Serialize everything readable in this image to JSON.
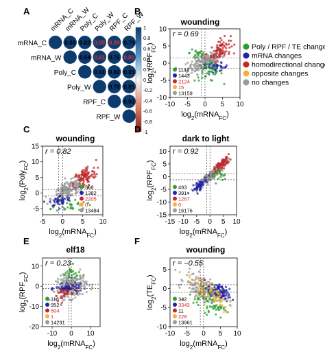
{
  "colors": {
    "green": "#2ca02c",
    "blue": "#2222aa",
    "red": "#c0282a",
    "orange": "#f5b041",
    "gray": "#9a9a9a",
    "navy": "#0d3b6e"
  },
  "panelA": {
    "label": "A",
    "columns": [
      "mRNA_C",
      "mRNA_W",
      "Poly_C",
      "Poly_W",
      "RPF_C",
      "RPF_W"
    ],
    "rows": [
      "mRNA_C",
      "mRNA_W",
      "Poly_C",
      "Poly_W",
      "RPF_C",
      "RPF_W"
    ],
    "cells": [
      {
        "r": 0,
        "c": 0,
        "v": "",
        "kind": "diag"
      },
      {
        "r": 0,
        "c": 1,
        "v": "0.88",
        "kind": "black"
      },
      {
        "r": 0,
        "c": 2,
        "v": "0.82",
        "kind": "black"
      },
      {
        "r": 0,
        "c": 3,
        "v": "0.69",
        "kind": "red"
      },
      {
        "r": 0,
        "c": 4,
        "v": "0.89",
        "kind": "red"
      },
      {
        "r": 0,
        "c": 5,
        "v": "0.79",
        "kind": "black"
      },
      {
        "r": 1,
        "c": 1,
        "v": "",
        "kind": "diag"
      },
      {
        "r": 1,
        "c": 2,
        "v": "0.84",
        "kind": "black"
      },
      {
        "r": 1,
        "c": 3,
        "v": "0.81",
        "kind": "red"
      },
      {
        "r": 1,
        "c": 4,
        "v": "0.76",
        "kind": "black"
      },
      {
        "r": 1,
        "c": 5,
        "v": "0.80",
        "kind": "red"
      },
      {
        "r": 2,
        "c": 2,
        "v": "",
        "kind": "diag"
      },
      {
        "r": 2,
        "c": 3,
        "v": "0.91",
        "kind": "black"
      },
      {
        "r": 2,
        "c": 4,
        "v": "0.82",
        "kind": "black"
      },
      {
        "r": 2,
        "c": 5,
        "v": "0.83",
        "kind": "black"
      },
      {
        "r": 3,
        "c": 3,
        "v": "",
        "kind": "diag"
      },
      {
        "r": 3,
        "c": 4,
        "v": "0.78",
        "kind": "black"
      },
      {
        "r": 3,
        "c": 5,
        "v": "0.85",
        "kind": "black"
      },
      {
        "r": 4,
        "c": 4,
        "v": "",
        "kind": "diag"
      },
      {
        "r": 4,
        "c": 5,
        "v": "0.90",
        "kind": "black"
      },
      {
        "r": 5,
        "c": 5,
        "v": "",
        "kind": "diag"
      }
    ],
    "colorbar_ticks": [
      "1",
      "0.8",
      "0.6",
      "0.4",
      "0.2",
      "0",
      "-0.2",
      "-0.4",
      "-0.6",
      "-0.8",
      "-1"
    ]
  },
  "legend": [
    "Poly / RPF / TE changes",
    "mRNA changes",
    "homodirectional changes",
    "opposite changes",
    "no changes"
  ],
  "panels": [
    {
      "label": "B",
      "title": "wounding",
      "r": "r = 0.69",
      "ylab": "log2(RPF_FC)",
      "xlab": "log2(mRNA_FC)",
      "xticks": [
        "-10",
        "-5",
        "0",
        "5",
        "10"
      ],
      "yticks": [
        "10",
        "5",
        "0",
        "-5",
        "-10"
      ],
      "counts": [
        "1144",
        "1443",
        "2124",
        "15",
        "13159"
      ]
    },
    {
      "label": "C",
      "title": "wounding",
      "r": "r = 0.82",
      "ylab": "log2(Poly_FC)",
      "xlab": "log2(mRNA_FC)",
      "xticks": [
        "-5",
        "0",
        "5",
        "10"
      ],
      "yticks": [
        "15",
        "10",
        "5",
        "0",
        "-5"
      ],
      "counts": [
        "568",
        "1382",
        "2205",
        "0",
        "13484"
      ]
    },
    {
      "label": "D",
      "title": "dark to light",
      "r": "r = 0.92",
      "ylab": "log2(RPF_FC)",
      "xlab": "log2(mRNA_FC)",
      "xticks": [
        "-15",
        "-10",
        "-5",
        "0",
        "5",
        "10"
      ],
      "yticks": [
        "10",
        "5",
        "0",
        "-5",
        "-10",
        "-15"
      ],
      "counts": [
        "493",
        "391",
        "1267",
        "0",
        "16176"
      ]
    },
    {
      "label": "E",
      "title": "elf18",
      "r": "r = 0.23",
      "ylab": "log2(RPF_FC)",
      "xlab": "log2(mRNA_FC)",
      "xticks": [
        "-10",
        "0",
        "10"
      ],
      "yticks": [
        "10",
        "0",
        "-10",
        "-20"
      ],
      "counts": [
        "118",
        "952",
        "504",
        "1",
        "14291"
      ]
    },
    {
      "label": "F",
      "title": "wounding",
      "r": "r = −0.55",
      "ylab": "log2(TE_FC)",
      "xlab": "log2(mRNA_FC)",
      "xticks": [
        "-10",
        "-5",
        "0",
        "5",
        "10"
      ],
      "yticks": [
        "5",
        "0",
        "-5",
        "-10"
      ],
      "counts": [
        "342",
        "3343",
        "11",
        "228",
        "13961"
      ]
    }
  ]
}
